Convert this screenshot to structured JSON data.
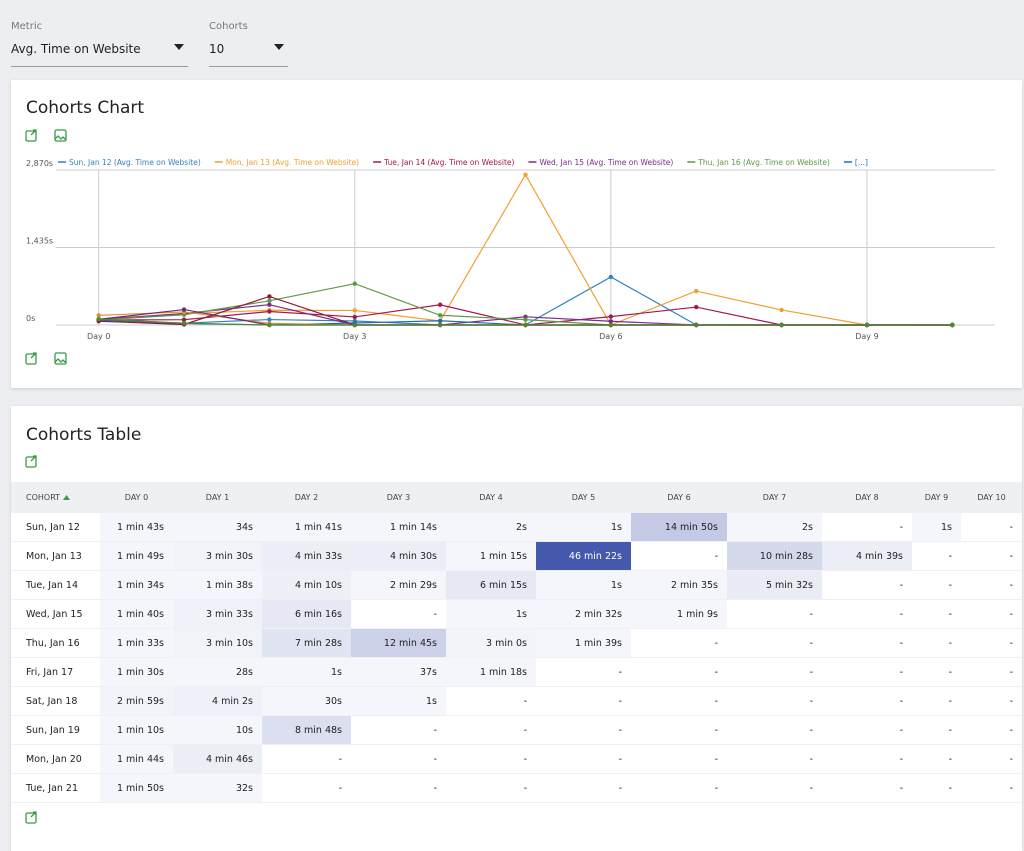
{
  "controls": {
    "metric": {
      "label": "Metric",
      "value": "Avg. Time on Website"
    },
    "cohorts": {
      "label": "Cohorts",
      "value": "10"
    }
  },
  "chart_card": {
    "title": "Cohorts Chart"
  },
  "chart_data": {
    "type": "line",
    "x": [
      0,
      1,
      2,
      3,
      4,
      5,
      6,
      7,
      8,
      9,
      10
    ],
    "xlim": [
      -0.5,
      10.5
    ],
    "xticks": [
      {
        "value": 0,
        "label": "Day 0"
      },
      {
        "value": 3,
        "label": "Day 3"
      },
      {
        "value": 6,
        "label": "Day 6"
      },
      {
        "value": 9,
        "label": "Day 9"
      }
    ],
    "ylim": [
      0,
      2870
    ],
    "yticks": [
      {
        "value": 0,
        "label": "0s"
      },
      {
        "value": 1435,
        "label": "1,435s"
      },
      {
        "value": 2870,
        "label": "2,870s"
      }
    ],
    "grid": true,
    "legend_position": "top",
    "legend_more": "[...]",
    "series": [
      {
        "name": "Sun, Jan 12 (Avg. Time on Website)",
        "color": "#2f86bd",
        "values": [
          103,
          34,
          101,
          74,
          2,
          1,
          890,
          2,
          0,
          1,
          0
        ]
      },
      {
        "name": "Mon, Jan 13 (Avg. Time on Website)",
        "color": "#f0a030",
        "values": [
          109,
          210,
          273,
          270,
          75,
          2782,
          0,
          628,
          279,
          0,
          0
        ]
      },
      {
        "name": "Tue, Jan 14 (Avg. Time on Website)",
        "color": "#a3184c",
        "values": [
          94,
          98,
          250,
          149,
          375,
          1,
          155,
          332,
          0,
          0,
          0
        ]
      },
      {
        "name": "Wed, Jan 15 (Avg. Time on Website)",
        "color": "#7d2a8e",
        "values": [
          100,
          213,
          376,
          0,
          1,
          152,
          69,
          0,
          0,
          0,
          0
        ]
      },
      {
        "name": "Thu, Jan 16 (Avg. Time on Website)",
        "color": "#5e9a44",
        "values": [
          93,
          190,
          448,
          765,
          180,
          99,
          0,
          0,
          0,
          0,
          0
        ]
      },
      {
        "color": "#1f6fa8",
        "values": [
          90,
          28,
          1,
          37,
          78,
          0,
          0,
          0,
          0,
          0,
          0
        ]
      },
      {
        "color": "#e0902a",
        "values": [
          179,
          242,
          30,
          1,
          0,
          0,
          0,
          0,
          0,
          0,
          0
        ]
      },
      {
        "color": "#8b1a3c",
        "values": [
          70,
          10,
          528,
          0,
          0,
          0,
          0,
          0,
          0,
          0,
          0
        ]
      },
      {
        "color": "#6a2a7c",
        "values": [
          104,
          286,
          0,
          0,
          0,
          0,
          0,
          0,
          0,
          0,
          0
        ]
      },
      {
        "color": "#4e8a30",
        "values": [
          110,
          32,
          0,
          0,
          0,
          0,
          0,
          0,
          0,
          0,
          0
        ]
      }
    ]
  },
  "table_card": {
    "title": "Cohorts Table"
  },
  "table": {
    "columns": [
      "COHORT",
      "DAY 0",
      "DAY 1",
      "DAY 2",
      "DAY 3",
      "DAY 4",
      "DAY 5",
      "DAY 6",
      "DAY 7",
      "DAY 8",
      "DAY 9",
      "DAY 10"
    ],
    "rows": [
      [
        "Sun, Jan 12",
        "1 min 43s",
        "34s",
        "1 min 41s",
        "1 min 14s",
        "2s",
        "1s",
        "14 min 50s",
        "2s",
        "-",
        "1s",
        "-"
      ],
      [
        "Mon, Jan 13",
        "1 min 49s",
        "3 min 30s",
        "4 min 33s",
        "4 min 30s",
        "1 min 15s",
        "46 min 22s",
        "-",
        "10 min 28s",
        "4 min 39s",
        "-",
        "-"
      ],
      [
        "Tue, Jan 14",
        "1 min 34s",
        "1 min 38s",
        "4 min 10s",
        "2 min 29s",
        "6 min 15s",
        "1s",
        "2 min 35s",
        "5 min 32s",
        "-",
        "-",
        "-"
      ],
      [
        "Wed, Jan 15",
        "1 min 40s",
        "3 min 33s",
        "6 min 16s",
        "-",
        "1s",
        "2 min 32s",
        "1 min 9s",
        "-",
        "-",
        "-",
        "-"
      ],
      [
        "Thu, Jan 16",
        "1 min 33s",
        "3 min 10s",
        "7 min 28s",
        "12 min 45s",
        "3 min 0s",
        "1 min 39s",
        "-",
        "-",
        "-",
        "-",
        "-"
      ],
      [
        "Fri, Jan 17",
        "1 min 30s",
        "28s",
        "1s",
        "37s",
        "1 min 18s",
        "-",
        "-",
        "-",
        "-",
        "-",
        "-"
      ],
      [
        "Sat, Jan 18",
        "2 min 59s",
        "4 min 2s",
        "30s",
        "1s",
        "-",
        "-",
        "-",
        "-",
        "-",
        "-",
        "-"
      ],
      [
        "Sun, Jan 19",
        "1 min 10s",
        "10s",
        "8 min 48s",
        "-",
        "-",
        "-",
        "-",
        "-",
        "-",
        "-",
        "-"
      ],
      [
        "Mon, Jan 20",
        "1 min 44s",
        "4 min 46s",
        "-",
        "-",
        "-",
        "-",
        "-",
        "-",
        "-",
        "-",
        "-"
      ],
      [
        "Tue, Jan 21",
        "1 min 50s",
        "32s",
        "-",
        "-",
        "-",
        "-",
        "-",
        "-",
        "-",
        "-",
        "-"
      ]
    ]
  }
}
